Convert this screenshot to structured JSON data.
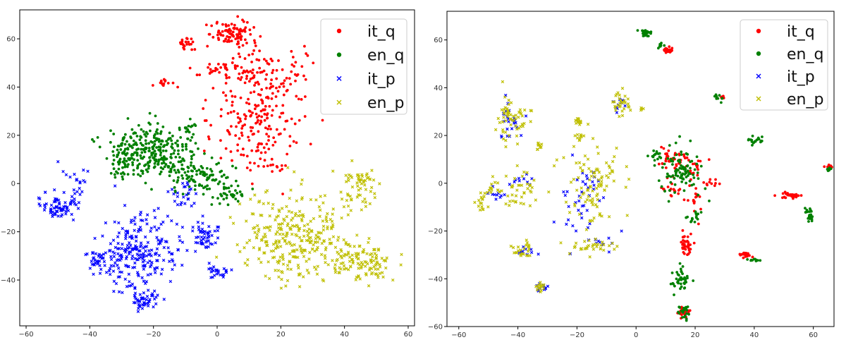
{
  "chart_data": [
    {
      "type": "scatter",
      "title": "",
      "xlabel": "",
      "ylabel": "",
      "xlim": [
        -62,
        62
      ],
      "ylim": [
        -59,
        72
      ],
      "x_ticks": [
        -60,
        -40,
        -20,
        0,
        20,
        40,
        60
      ],
      "y_ticks": [
        -40,
        -20,
        0,
        20,
        40,
        60
      ],
      "grid": false,
      "legend_position": "top-right",
      "series": [
        {
          "name": "it_q",
          "color": "#ff0000",
          "marker": "dot",
          "clusters": [
            {
              "cx": 5,
              "cy": 62,
              "sx": 3.5,
              "sy": 2.5,
              "n": 90
            },
            {
              "cx": 15,
              "cy": 45,
              "sx": 8,
              "sy": 7,
              "n": 120
            },
            {
              "cx": 13,
              "cy": 25,
              "sx": 7,
              "sy": 10,
              "n": 170
            },
            {
              "cx": -10,
              "cy": 58,
              "sx": 1.2,
              "sy": 2.5,
              "n": 20
            },
            {
              "cx": -16,
              "cy": 42,
              "sx": 1.5,
              "sy": 1,
              "n": 15
            },
            {
              "cx": -1,
              "cy": 47,
              "sx": 2,
              "sy": 1.5,
              "n": 15
            },
            {
              "cx": 18,
              "cy": 6,
              "sx": 1.5,
              "sy": 1.5,
              "n": 8
            }
          ]
        },
        {
          "name": "en_q",
          "color": "#008000",
          "marker": "dot",
          "clusters": [
            {
              "cx": -20,
              "cy": 13,
              "sx": 6.5,
              "sy": 5.5,
              "n": 280
            },
            {
              "cx": -5,
              "cy": 3,
              "sx": 5.5,
              "sy": 4,
              "n": 110
            },
            {
              "cx": -30,
              "cy": 12,
              "sx": 2,
              "sy": 4,
              "n": 40
            },
            {
              "cx": 4,
              "cy": -4,
              "sx": 3,
              "sy": 2,
              "n": 30
            },
            {
              "cx": -9,
              "cy": 23,
              "sx": 1,
              "sy": 1,
              "n": 10
            }
          ]
        },
        {
          "name": "it_p",
          "color": "#0000ff",
          "marker": "x",
          "clusters": [
            {
              "cx": -51,
              "cy": -10,
              "sx": 2.5,
              "sy": 2.5,
              "n": 60
            },
            {
              "cx": -25,
              "cy": -28,
              "sx": 5.5,
              "sy": 8,
              "n": 240
            },
            {
              "cx": -23,
              "cy": -48,
              "sx": 2,
              "sy": 2.5,
              "n": 45
            },
            {
              "cx": -38,
              "cy": -32,
              "sx": 2,
              "sy": 2,
              "n": 30
            },
            {
              "cx": -4,
              "cy": -22,
              "sx": 2.5,
              "sy": 3,
              "n": 50
            },
            {
              "cx": 0,
              "cy": -37,
              "sx": 2,
              "sy": 1.5,
              "n": 25
            },
            {
              "cx": -44,
              "cy": -2,
              "sx": 3,
              "sy": 5,
              "n": 30
            },
            {
              "cx": -10,
              "cy": -5,
              "sx": 3,
              "sy": 3,
              "n": 25
            }
          ]
        },
        {
          "name": "en_p",
          "color": "#bfbf00",
          "marker": "x",
          "clusters": [
            {
              "cx": 25,
              "cy": -22,
              "sx": 8,
              "sy": 9,
              "n": 300
            },
            {
              "cx": 45,
              "cy": -32,
              "sx": 5,
              "sy": 4,
              "n": 120
            },
            {
              "cx": 44,
              "cy": -3,
              "sx": 3,
              "sy": 4,
              "n": 40
            },
            {
              "cx": 46,
              "cy": 2,
              "sx": 1.5,
              "sy": 1.5,
              "n": 20
            }
          ]
        }
      ]
    },
    {
      "type": "scatter",
      "title": "",
      "xlabel": "",
      "ylabel": "",
      "xlim": [
        -64,
        67
      ],
      "ylim": [
        -60,
        72
      ],
      "x_ticks": [
        -60,
        -40,
        -20,
        0,
        20,
        40,
        60
      ],
      "y_ticks": [
        -60,
        -40,
        -20,
        0,
        20,
        40,
        60
      ],
      "grid": false,
      "legend_position": "top-right",
      "series": [
        {
          "name": "it_q",
          "color": "#ff0000",
          "marker": "dot",
          "clusters": [
            {
              "cx": 11,
              "cy": 56,
              "sx": 1,
              "sy": 0.8,
              "n": 25
            },
            {
              "cx": 11,
              "cy": 10,
              "sx": 2,
              "sy": 2,
              "n": 30
            },
            {
              "cx": 18,
              "cy": 7,
              "sx": 3,
              "sy": 3,
              "n": 35
            },
            {
              "cx": 13,
              "cy": -4,
              "sx": 2,
              "sy": 2,
              "n": 20
            },
            {
              "cx": 19,
              "cy": -8,
              "sx": 1.5,
              "sy": 3,
              "n": 15
            },
            {
              "cx": 17,
              "cy": -25,
              "sx": 1,
              "sy": 3,
              "n": 35
            },
            {
              "cx": 16,
              "cy": -54,
              "sx": 1,
              "sy": 1,
              "n": 20
            },
            {
              "cx": 37,
              "cy": -30,
              "sx": 1,
              "sy": 0.8,
              "n": 20
            },
            {
              "cx": 52,
              "cy": -5,
              "sx": 2,
              "sy": 0.8,
              "n": 30
            },
            {
              "cx": 65,
              "cy": 7,
              "sx": 0.5,
              "sy": 0.5,
              "n": 8
            },
            {
              "cx": 29,
              "cy": 36,
              "sx": 0.5,
              "sy": 0.5,
              "n": 6
            },
            {
              "cx": 25,
              "cy": 0,
              "sx": 1.5,
              "sy": 1,
              "n": 10
            }
          ]
        },
        {
          "name": "en_q",
          "color": "#008000",
          "marker": "dot",
          "clusters": [
            {
              "cx": 3,
              "cy": 63,
              "sx": 1,
              "sy": 0.8,
              "n": 25
            },
            {
              "cx": 8,
              "cy": 58,
              "sx": 0.8,
              "sy": 0.8,
              "n": 8
            },
            {
              "cx": 15,
              "cy": 5,
              "sx": 4,
              "sy": 5,
              "n": 90
            },
            {
              "cx": 15,
              "cy": -40,
              "sx": 1.5,
              "sy": 2.5,
              "n": 40
            },
            {
              "cx": 16,
              "cy": -54,
              "sx": 1,
              "sy": 2,
              "n": 20
            },
            {
              "cx": 40,
              "cy": 18,
              "sx": 1.5,
              "sy": 0.8,
              "n": 20
            },
            {
              "cx": 59,
              "cy": -13,
              "sx": 0.8,
              "sy": 1.5,
              "n": 20
            },
            {
              "cx": 40,
              "cy": -32,
              "sx": 1,
              "sy": 0.5,
              "n": 10
            },
            {
              "cx": 28,
              "cy": 36,
              "sx": 1,
              "sy": 1,
              "n": 10
            },
            {
              "cx": 20,
              "cy": -15,
              "sx": 1.5,
              "sy": 1.5,
              "n": 15
            },
            {
              "cx": 7,
              "cy": 12,
              "sx": 1,
              "sy": 1,
              "n": 15
            },
            {
              "cx": 65,
              "cy": 6,
              "sx": 0.5,
              "sy": 0.5,
              "n": 6
            }
          ]
        },
        {
          "name": "it_p",
          "color": "#0000ff",
          "marker": "x",
          "clusters": [
            {
              "cx": -43,
              "cy": 27,
              "sx": 2.5,
              "sy": 4,
              "n": 25
            },
            {
              "cx": -40,
              "cy": 1,
              "sx": 2,
              "sy": 1.5,
              "n": 10
            },
            {
              "cx": -32,
              "cy": -44,
              "sx": 1,
              "sy": 1,
              "n": 15
            },
            {
              "cx": -18,
              "cy": -5,
              "sx": 4,
              "sy": 9,
              "n": 40
            },
            {
              "cx": -6,
              "cy": 33,
              "sx": 1,
              "sy": 2,
              "n": 10
            },
            {
              "cx": -38,
              "cy": -28,
              "sx": 1.5,
              "sy": 1.5,
              "n": 10
            },
            {
              "cx": -48,
              "cy": -5,
              "sx": 2,
              "sy": 2,
              "n": 10
            },
            {
              "cx": -10,
              "cy": -24,
              "sx": 3,
              "sy": 2,
              "n": 10
            }
          ]
        },
        {
          "name": "en_p",
          "color": "#bfbf00",
          "marker": "x",
          "clusters": [
            {
              "cx": -43,
              "cy": 27,
              "sx": 3,
              "sy": 5,
              "n": 60
            },
            {
              "cx": -33,
              "cy": 16,
              "sx": 1,
              "sy": 1,
              "n": 10
            },
            {
              "cx": -52,
              "cy": -7,
              "sx": 1,
              "sy": 2,
              "n": 15
            },
            {
              "cx": -40,
              "cy": -4,
              "sx": 3,
              "sy": 4,
              "n": 40
            },
            {
              "cx": -48,
              "cy": -3,
              "sx": 1.5,
              "sy": 2,
              "n": 15
            },
            {
              "cx": -38,
              "cy": -28,
              "sx": 2,
              "sy": 2,
              "n": 25
            },
            {
              "cx": -32,
              "cy": -44,
              "sx": 1,
              "sy": 1.2,
              "n": 15
            },
            {
              "cx": -14,
              "cy": -2,
              "sx": 5,
              "sy": 10,
              "n": 100
            },
            {
              "cx": -19,
              "cy": 26,
              "sx": 1,
              "sy": 0.8,
              "n": 15
            },
            {
              "cx": -5,
              "cy": 33,
              "sx": 1.5,
              "sy": 3,
              "n": 30
            },
            {
              "cx": -16,
              "cy": -27,
              "sx": 4,
              "sy": 1.5,
              "n": 30
            },
            {
              "cx": -19,
              "cy": 20,
              "sx": 1,
              "sy": 1,
              "n": 10
            },
            {
              "cx": 2,
              "cy": 31,
              "sx": 0.5,
              "sy": 0.5,
              "n": 4
            }
          ]
        }
      ]
    }
  ]
}
